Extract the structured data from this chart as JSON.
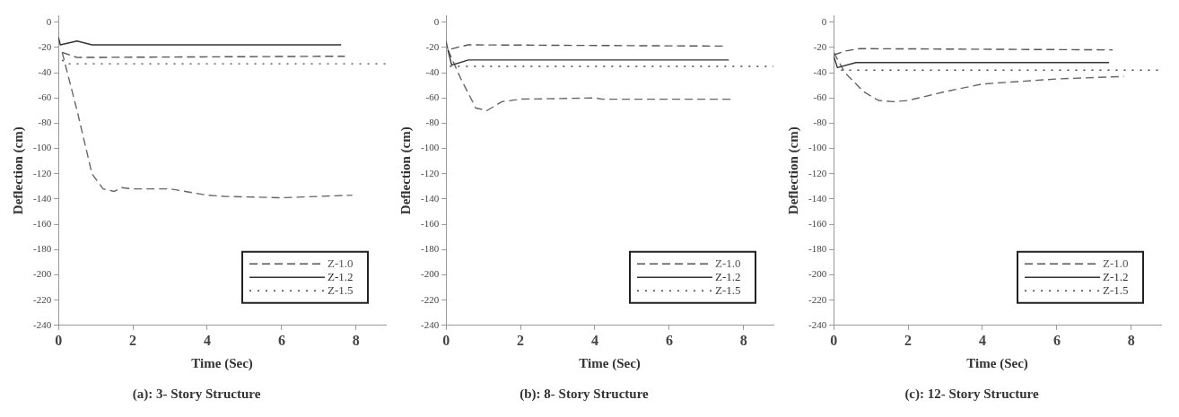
{
  "chart_data": [
    {
      "type": "line",
      "title": "(a): 3- Story Structure",
      "xlabel": "Time (Sec)",
      "ylabel": "Deflection (cm)",
      "xlim": [
        0,
        8.8
      ],
      "xticks": [
        0,
        2,
        4,
        6,
        8
      ],
      "ylim": [
        -240,
        5
      ],
      "yticks": [
        0,
        -20,
        -40,
        -60,
        -80,
        -100,
        -120,
        -140,
        -160,
        -180,
        -200,
        -220,
        -240
      ],
      "grid": false,
      "legend": "bottom right",
      "series": [
        {
          "name": "Z-1.0",
          "color": "#555555",
          "line_style": "dashed",
          "x": [
            0.1,
            0.5,
            7.7
          ],
          "values": [
            -24,
            -28,
            -27
          ]
        },
        {
          "name": "Z-1.2",
          "color": "#333333",
          "line_style": "solid",
          "x": [
            0,
            0.05,
            0.5,
            0.9,
            7.6
          ],
          "values": [
            -12,
            -18,
            -15,
            -18,
            -18
          ]
        },
        {
          "name": "Z-1.5",
          "color": "#444444",
          "line_style": "dotted",
          "x": [
            0.1,
            0.2,
            8.8
          ],
          "values": [
            -30,
            -33,
            -33
          ]
        },
        {
          "color": "#666666",
          "line_style": "dashed",
          "x": [
            0.1,
            0.5,
            0.9,
            1.2,
            1.5,
            1.7,
            2,
            3,
            4,
            4.5,
            6,
            7.9
          ],
          "values": [
            -24,
            -70,
            -120,
            -132,
            -134,
            -131,
            -132,
            -132,
            -137,
            -138,
            -139,
            -137
          ]
        }
      ]
    },
    {
      "type": "line",
      "title": "(b): 8- Story Structure",
      "xlabel": "Time (Sec)",
      "ylabel": "Deflection (cm)",
      "xlim": [
        0,
        8.8
      ],
      "xticks": [
        0,
        2,
        4,
        6,
        8
      ],
      "ylim": [
        -240,
        5
      ],
      "yticks": [
        0,
        -20,
        -40,
        -60,
        -80,
        -100,
        -120,
        -140,
        -160,
        -180,
        -200,
        -220,
        -240
      ],
      "grid": false,
      "legend": "bottom right",
      "series": [
        {
          "name": "Z-1.0",
          "color": "#555555",
          "line_style": "dashed",
          "x": [
            0,
            0.05,
            0.3,
            0.6,
            7.5
          ],
          "values": [
            -15,
            -22,
            -20,
            -18,
            -19
          ]
        },
        {
          "name": "Z-1.2",
          "color": "#333333",
          "line_style": "solid",
          "x": [
            0.05,
            0.15,
            0.6,
            7.6
          ],
          "values": [
            -22,
            -34,
            -30,
            -30
          ]
        },
        {
          "name": "Z-1.5",
          "color": "#444444",
          "line_style": "dotted",
          "x": [
            0.1,
            8.8
          ],
          "values": [
            -35,
            -35
          ]
        },
        {
          "color": "#666666",
          "line_style": "dashed",
          "x": [
            0.05,
            0.4,
            0.8,
            1.1,
            1.5,
            2,
            4,
            4.2,
            7.7
          ],
          "values": [
            -22,
            -45,
            -68,
            -70,
            -63,
            -61,
            -60,
            -61,
            -61
          ]
        }
      ]
    },
    {
      "type": "line",
      "title": "(c): 12- Story Structure",
      "xlabel": "Time (Sec)",
      "ylabel": "Deflection (cm)",
      "xlim": [
        0,
        8.8
      ],
      "xticks": [
        0,
        2,
        4,
        6,
        8
      ],
      "ylim": [
        -240,
        5
      ],
      "yticks": [
        0,
        -20,
        -40,
        -60,
        -80,
        -100,
        -120,
        -140,
        -160,
        -180,
        -200,
        -220,
        -240
      ],
      "grid": false,
      "legend": "bottom right",
      "series": [
        {
          "name": "Z-1.0",
          "color": "#555555",
          "line_style": "dashed",
          "x": [
            0,
            0.3,
            0.7,
            7.5
          ],
          "values": [
            -26,
            -23,
            -21,
            -22
          ]
        },
        {
          "name": "Z-1.2",
          "color": "#333333",
          "line_style": "solid",
          "x": [
            0,
            0.1,
            0.6,
            7.4
          ],
          "values": [
            -27,
            -36,
            -32,
            -32
          ]
        },
        {
          "name": "Z-1.5",
          "color": "#444444",
          "line_style": "dotted",
          "x": [
            0.2,
            8.8
          ],
          "values": [
            -38,
            -38
          ]
        },
        {
          "color": "#666666",
          "line_style": "dashed",
          "x": [
            0,
            0.3,
            0.8,
            1.2,
            1.6,
            2,
            3,
            4,
            6,
            7.8
          ],
          "values": [
            -24,
            -40,
            -55,
            -62,
            -63,
            -62,
            -55,
            -49,
            -45,
            -43
          ]
        }
      ]
    }
  ]
}
